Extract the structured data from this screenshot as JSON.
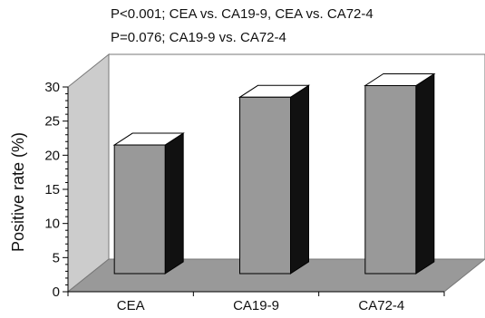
{
  "chart_data": {
    "type": "bar",
    "categories": [
      "CEA",
      "CA19-9",
      "CA72-4"
    ],
    "values": [
      21.5,
      28.5,
      30.2
    ],
    "ylabel": "Positive rate (%)",
    "ylim": [
      0,
      30
    ],
    "yticks": [
      "0",
      "5",
      "10",
      "15",
      "20",
      "25",
      "30"
    ],
    "annotations": [
      "P<0.001; CEA vs. CA19-9, CEA vs. CA72-4",
      "P=0.076; CA19-9 vs. CA72-4"
    ],
    "style": "3d",
    "colors": {
      "bar_front": "#999999",
      "bar_side": "#111111",
      "bar_top": "#ffffff",
      "back_wall": "#ffffff",
      "side_wall": "#cccccc",
      "floor": "#999999"
    }
  }
}
